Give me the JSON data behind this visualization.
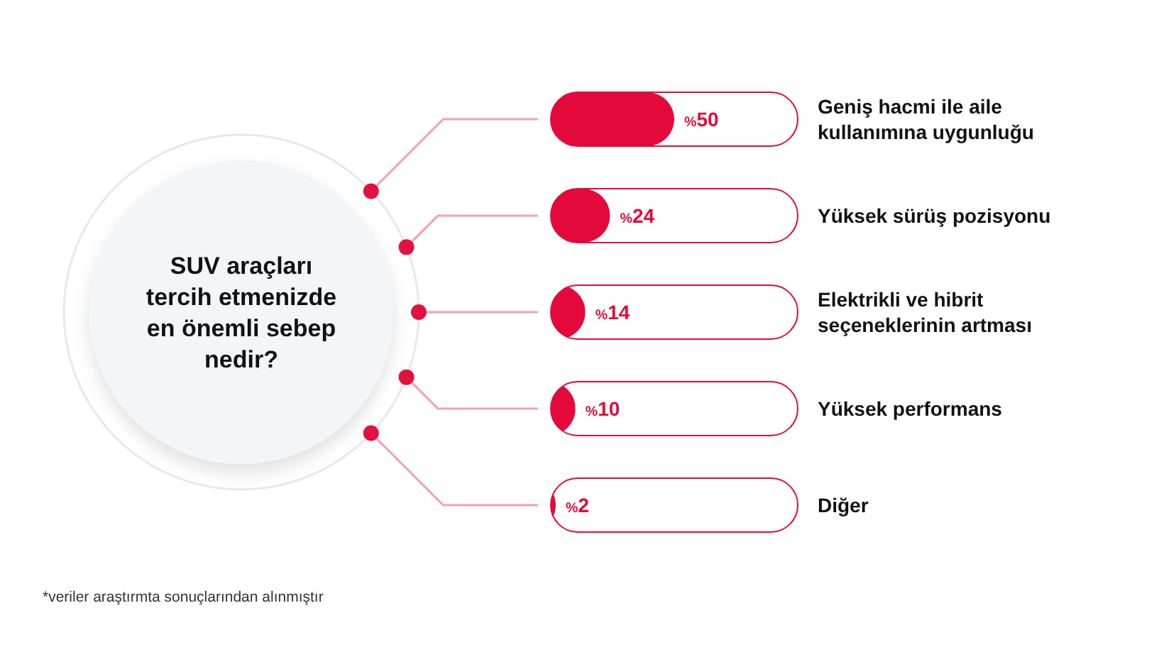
{
  "chart_data": {
    "type": "bar",
    "orientation": "horizontal",
    "title": "SUV araçları tercih etmenizde en önemli sebep nedir?",
    "categories": [
      "Geniş hacmi ile aile kullanımına uygunluğu",
      "Yüksek sürüş pozisyonu",
      "Elektrikli ve hibrit seçeneklerinin artması",
      "Yüksek performans",
      "Diğer"
    ],
    "values": [
      50,
      24,
      14,
      10,
      2
    ],
    "value_labels": [
      "%50",
      "%24",
      "%14",
      "%10",
      "%2"
    ],
    "color": "#e30a3b",
    "xlim": [
      0,
      100
    ],
    "tick_labels": "y",
    "annotations": [
      "*veriler araştırmta sonuçlarından alınmıştır"
    ]
  }
}
